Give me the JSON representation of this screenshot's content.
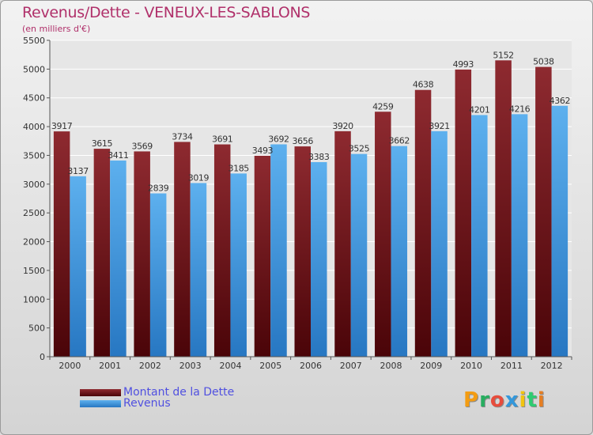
{
  "title": "Revenus/Dette - VENEUX-LES-SABLONS",
  "subtitle": "(en milliers d'€)",
  "logo_text": "Proxiti",
  "logo_colors": [
    "#f39c12",
    "#27ae60",
    "#e74c3c",
    "#3498db",
    "#f1c40f",
    "#2ecc71",
    "#e67e22"
  ],
  "chart_data": {
    "type": "bar",
    "categories": [
      "2000",
      "2001",
      "2002",
      "2003",
      "2004",
      "2005",
      "2006",
      "2007",
      "2008",
      "2009",
      "2010",
      "2011",
      "2012"
    ],
    "series": [
      {
        "name": "Montant de la Dette",
        "color": "#7a1f24",
        "values": [
          3917,
          3615,
          3569,
          3734,
          3691,
          3493,
          3656,
          3920,
          4259,
          4638,
          4993,
          5152,
          5038
        ]
      },
      {
        "name": "Revenus",
        "color": "#3d9be0",
        "values": [
          3137,
          3411,
          2839,
          3019,
          3185,
          3692,
          3383,
          3525,
          3662,
          3921,
          4201,
          4216,
          4362
        ]
      }
    ],
    "yticks": [
      0,
      500,
      1000,
      1500,
      2000,
      2500,
      3000,
      3500,
      4000,
      4500,
      5000,
      5500
    ],
    "ylim": [
      0,
      5500
    ],
    "grid": true,
    "legend_position": "bottom-left"
  }
}
